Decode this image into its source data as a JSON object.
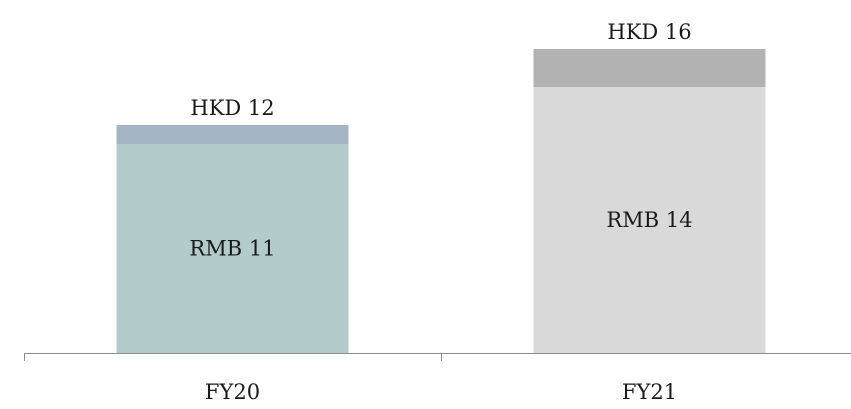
{
  "chart_data": {
    "type": "bar",
    "stacked": true,
    "categories": [
      "FY20",
      "FY21"
    ],
    "totals": [
      12,
      16
    ],
    "total_labels": [
      "HKD 12",
      "HKD 16"
    ],
    "series": [
      {
        "values": [
          11,
          14
        ],
        "labels": [
          "RMB 11",
          "RMB 14"
        ],
        "colors": [
          "#b3cbcb",
          "#d9d9d9"
        ]
      },
      {
        "values": [
          1,
          2
        ],
        "colors": [
          "#a5b5c5",
          "#b2b2b2"
        ]
      }
    ],
    "ylim": [
      0,
      17
    ],
    "grid": false,
    "legend": "none"
  }
}
